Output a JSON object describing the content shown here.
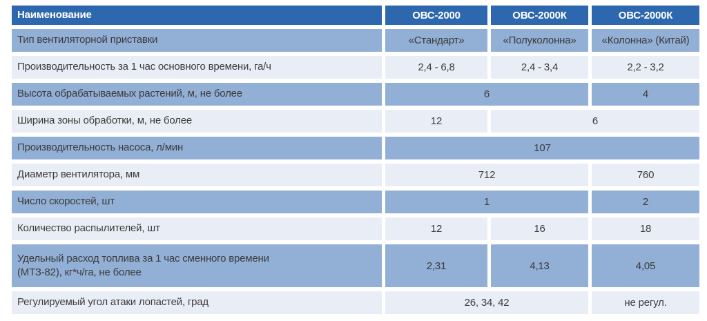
{
  "table": {
    "header": {
      "name": "Наименование",
      "models": [
        "ОВС-2000",
        "ОВС-2000К",
        "ОВС-2000К"
      ]
    },
    "rows": [
      {
        "label": "Тип вентиляторной приставки",
        "values": [
          "«Стандарт»",
          "«Полуколонна»",
          "«Колонна» (Китай)"
        ]
      },
      {
        "label": "Производительность за 1 час основного времени, га/ч",
        "values": [
          "2,4 - 6,8",
          "2,4 - 3,4",
          "2,2 - 3,2"
        ]
      },
      {
        "label": "Высота обрабатываемых растений, м, не более",
        "values": [
          "6",
          "4"
        ]
      },
      {
        "label": "Ширина зоны обработки, м, не более",
        "values": [
          "12",
          "6"
        ]
      },
      {
        "label": "Производительность насоса, л/мин",
        "values": [
          "107"
        ]
      },
      {
        "label": "Диаметр вентилятора, мм",
        "values": [
          "712",
          "760"
        ]
      },
      {
        "label": "Число скоростей, шт",
        "values": [
          "1",
          "2"
        ]
      },
      {
        "label": "Количество распылителей, шт",
        "values": [
          "12",
          "16",
          "18"
        ]
      },
      {
        "label": "Удельный расход топлива за 1 час сменного времени\n(МТЗ-82), кг*ч/га, не более",
        "values": [
          "2,31",
          "4,13",
          "4,05"
        ]
      },
      {
        "label": "Регулируемый угол атаки лопастей, град",
        "values": [
          "26, 34, 42",
          "не регул."
        ]
      }
    ]
  },
  "colors": {
    "header_bg": "#2d68ae",
    "header_text": "#ffffff",
    "row_medium_bg": "#92afd6",
    "row_light_bg": "#e9eef6",
    "body_text": "#3b3b3b",
    "gap": "#ffffff"
  }
}
